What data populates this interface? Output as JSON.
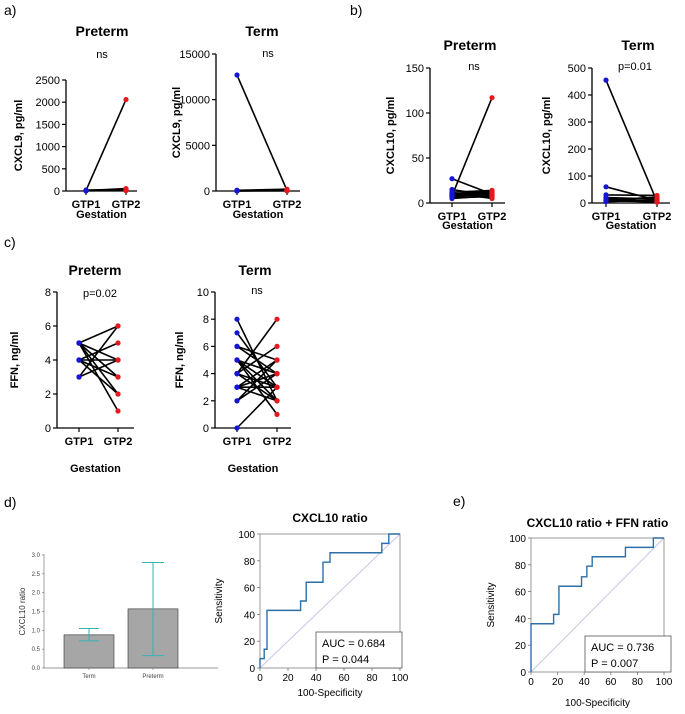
{
  "panel_labels": {
    "a": "a)",
    "b": "b)",
    "c": "c)",
    "d": "d)",
    "e": "e)"
  },
  "colors": {
    "gtp1": "#1515d6",
    "gtp2": "#e8191e",
    "bar": "#a6a6a6",
    "err": "#3ab2b2",
    "roc": "#2d6fa8",
    "diag": "#c9c4e6"
  },
  "chart_data": [
    {
      "id": "a_preterm",
      "type": "scatter",
      "title": "Preterm",
      "annotation": "ns",
      "ylabel": "CXCL9, pg/ml",
      "xlabel": "Gestation",
      "categories": [
        "GTP1",
        "GTP2"
      ],
      "ylim": [
        0,
        2500
      ],
      "yticks": [
        0,
        500,
        1000,
        1500,
        2000,
        2500
      ],
      "pairs": [
        [
          12,
          2060
        ],
        [
          10,
          55
        ],
        [
          8,
          40
        ],
        [
          15,
          35
        ],
        [
          6,
          30
        ],
        [
          20,
          25
        ],
        [
          9,
          20
        ],
        [
          5,
          15
        ],
        [
          11,
          12
        ],
        [
          7,
          10
        ]
      ]
    },
    {
      "id": "a_term",
      "type": "scatter",
      "title": "Term",
      "annotation": "ns",
      "ylabel": "CXCL9, pg/ml",
      "xlabel": "Gestation",
      "categories": [
        "GTP1",
        "GTP2"
      ],
      "ylim": [
        0,
        15000
      ],
      "yticks": [
        0,
        5000,
        10000,
        15000
      ],
      "pairs": [
        [
          12700,
          60
        ],
        [
          80,
          200
        ],
        [
          60,
          120
        ],
        [
          50,
          90
        ],
        [
          40,
          70
        ],
        [
          30,
          50
        ],
        [
          20,
          40
        ],
        [
          10,
          30
        ],
        [
          15,
          20
        ]
      ]
    },
    {
      "id": "b_preterm",
      "type": "scatter",
      "title": "Preterm",
      "annotation": "ns",
      "ylabel": "CXCL10, pg/ml",
      "xlabel": "Gestation",
      "categories": [
        "GTP1",
        "GTP2"
      ],
      "ylim": [
        0,
        150
      ],
      "yticks": [
        0,
        50,
        100,
        150
      ],
      "pairs": [
        [
          8,
          117
        ],
        [
          27,
          10
        ],
        [
          15,
          8
        ],
        [
          12,
          14
        ],
        [
          10,
          6
        ],
        [
          9,
          12
        ],
        [
          8,
          9
        ],
        [
          7,
          11
        ],
        [
          6,
          7
        ],
        [
          10,
          13
        ],
        [
          11,
          5
        ],
        [
          9,
          10
        ],
        [
          5,
          8
        ]
      ]
    },
    {
      "id": "b_term",
      "type": "scatter",
      "title": "Term",
      "annotation": "p=0.01",
      "ylabel": "CXCL10, pg/ml",
      "xlabel": "Gestation",
      "categories": [
        "GTP1",
        "GTP2"
      ],
      "ylim": [
        0,
        500
      ],
      "yticks": [
        0,
        100,
        200,
        300,
        400,
        500
      ],
      "pairs": [
        [
          455,
          5
        ],
        [
          60,
          10
        ],
        [
          30,
          28
        ],
        [
          20,
          15
        ],
        [
          15,
          8
        ],
        [
          10,
          22
        ],
        [
          8,
          5
        ],
        [
          5,
          12
        ],
        [
          12,
          3
        ]
      ]
    },
    {
      "id": "c_preterm",
      "type": "scatter",
      "title": "Preterm",
      "annotation": "p=0.02",
      "ylabel": "FFN, ng/ml",
      "xlabel": "Gestation",
      "categories": [
        "GTP1",
        "GTP2"
      ],
      "ylim": [
        0,
        8
      ],
      "yticks": [
        0,
        2,
        4,
        6,
        8
      ],
      "pairs": [
        [
          5,
          6
        ],
        [
          5,
          4
        ],
        [
          5,
          2
        ],
        [
          5,
          1
        ],
        [
          4,
          5
        ],
        [
          4,
          3
        ],
        [
          4,
          2
        ],
        [
          3,
          4
        ],
        [
          3,
          6
        ],
        [
          5,
          3
        ],
        [
          4,
          4
        ]
      ]
    },
    {
      "id": "c_term",
      "type": "scatter",
      "title": "Term",
      "annotation": "ns",
      "ylabel": "FFN, ng/ml",
      "xlabel": "Gestation",
      "categories": [
        "GTP1",
        "GTP2"
      ],
      "ylim": [
        0,
        10
      ],
      "yticks": [
        0,
        2,
        4,
        6,
        8,
        10
      ],
      "pairs": [
        [
          8,
          2
        ],
        [
          7,
          3
        ],
        [
          6,
          5
        ],
        [
          6,
          4
        ],
        [
          5,
          1
        ],
        [
          5,
          3
        ],
        [
          5,
          4
        ],
        [
          4,
          8
        ],
        [
          4,
          6
        ],
        [
          4,
          2
        ],
        [
          4,
          3
        ],
        [
          3,
          5
        ],
        [
          3,
          4
        ],
        [
          3,
          2
        ],
        [
          2,
          4
        ],
        [
          2,
          5
        ],
        [
          0,
          3
        ],
        [
          5,
          2
        ],
        [
          3,
          3
        ]
      ]
    },
    {
      "id": "d_bar",
      "type": "bar",
      "ylabel": "CXCL10 ratio",
      "categories": [
        "Term",
        "Preterm"
      ],
      "values": [
        0.88,
        1.57
      ],
      "err_low": [
        0.72,
        0.33
      ],
      "err_high": [
        1.05,
        2.8
      ],
      "ylim": [
        0,
        3.0
      ],
      "yticks": [
        "0.0",
        "0.5",
        "1.0",
        "1.5",
        "2.0",
        "2.5",
        "3.0"
      ]
    },
    {
      "id": "d_roc",
      "type": "line",
      "title": "CXCL10 ratio",
      "xlabel": "100-Specificity",
      "ylabel": "Sensitivity",
      "xlim": [
        0,
        100
      ],
      "ylim": [
        0,
        100
      ],
      "ticks": [
        0,
        20,
        40,
        60,
        80,
        100
      ],
      "auc": "AUC = 0.684",
      "p": "P = 0.044",
      "x": [
        0,
        0,
        3,
        3,
        5,
        5,
        8,
        8,
        29,
        29,
        33,
        33,
        38,
        38,
        45,
        45,
        50,
        50,
        87,
        87,
        92,
        92,
        100
      ],
      "y": [
        0,
        7,
        7,
        14,
        14,
        43,
        43,
        43,
        43,
        50,
        50,
        64,
        64,
        64,
        64,
        79,
        79,
        86,
        86,
        93,
        93,
        100,
        100
      ]
    },
    {
      "id": "e_roc",
      "type": "line",
      "title": "CXCL10 ratio + FFN ratio",
      "xlabel": "100-Specificity",
      "ylabel": "Sensitivity",
      "xlim": [
        0,
        100
      ],
      "ylim": [
        0,
        100
      ],
      "ticks": [
        0,
        20,
        40,
        60,
        80,
        100
      ],
      "auc": "AUC = 0.736",
      "p": "P = 0.007",
      "x": [
        0,
        0,
        17,
        17,
        21,
        21,
        38,
        38,
        42,
        42,
        46,
        46,
        71,
        71,
        92,
        92,
        100
      ],
      "y": [
        0,
        36,
        36,
        43,
        43,
        64,
        64,
        71,
        71,
        79,
        79,
        86,
        86,
        93,
        93,
        100,
        100
      ]
    }
  ]
}
